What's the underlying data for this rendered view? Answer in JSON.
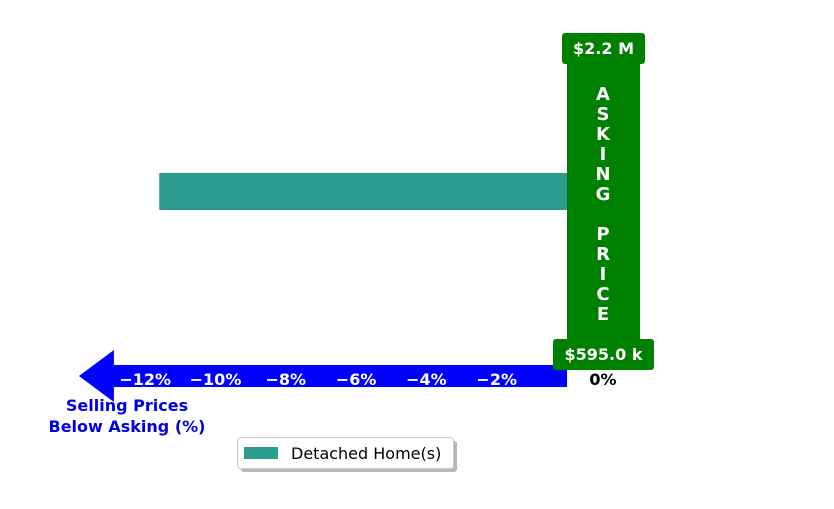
{
  "chart_data": {
    "type": "bar",
    "orientation": "horizontal",
    "series": [
      {
        "name": "Detached Home(s)",
        "color": "#2a9d8f",
        "values": [
          -11.6,
          0.5
        ]
      }
    ],
    "xlim": [
      -13.9,
      1.0
    ],
    "x_ticks": [
      -12,
      -10,
      -8,
      -6,
      -4,
      -2,
      0
    ],
    "x_tick_labels": [
      "−12%",
      "−10%",
      "−8%",
      "−6%",
      "−4%",
      "−2%",
      "0%"
    ],
    "xlabel_lines": [
      "Selling Prices",
      "Below Asking (%)"
    ],
    "asking_price": {
      "top_label": "$2.2 M",
      "bottom_label": "$595.0 k",
      "vertical_text": "ASKING PRICE",
      "color": "#008000"
    },
    "arrow_color": "#0000ff",
    "legend": {
      "placement": "bottom-center"
    }
  }
}
